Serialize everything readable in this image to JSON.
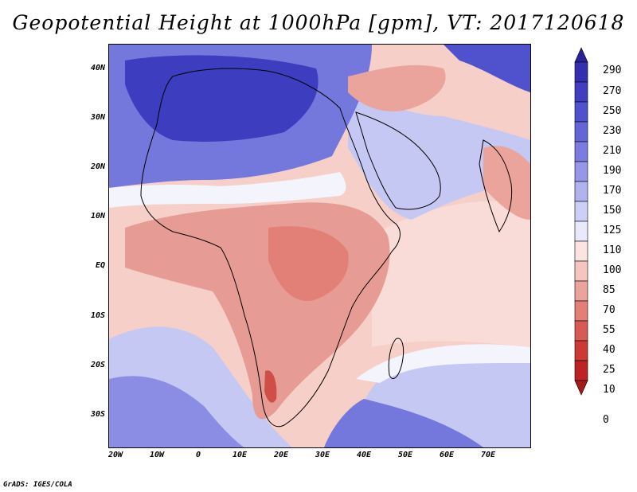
{
  "title": "Geopotential Height at 1000hPa [gpm], VT: 2017120618",
  "footer": "GrADS: IGES/COLA",
  "axes": {
    "y_ticks": [
      "40N",
      "30N",
      "20N",
      "10N",
      "EQ",
      "10S",
      "20S",
      "30S"
    ],
    "x_ticks": [
      "20W",
      "10W",
      "0",
      "10E",
      "20E",
      "30E",
      "40E",
      "50E",
      "60E",
      "70E"
    ]
  },
  "colorbar": {
    "labels": [
      "290",
      "270",
      "250",
      "230",
      "210",
      "190",
      "170",
      "150",
      "125",
      "110",
      "100",
      "85",
      "70",
      "55",
      "40",
      "25",
      "10",
      "0"
    ],
    "colors": [
      "#2a229a",
      "#3330b0",
      "#3f3fc0",
      "#4f52cc",
      "#6466d6",
      "#7a7ddf",
      "#9597e8",
      "#b1b3ef",
      "#cdd0f6",
      "#e8eafb",
      "#fbe4e1",
      "#f5c6c0",
      "#eba49c",
      "#e27f77",
      "#d85a54",
      "#cd3a36",
      "#bd2323",
      "#a51a1a"
    ]
  },
  "colors": {
    "deep_blue": "#3d3dbf",
    "blue": "#7478dc",
    "light_blue": "#c5c8f3",
    "white": "#f4f4fc",
    "light_red": "#f6cfc9",
    "red": "#e69c94",
    "deep_red": "#cf4e48"
  }
}
